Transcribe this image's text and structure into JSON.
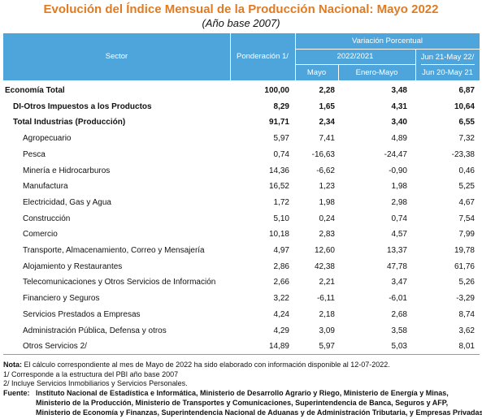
{
  "header": {
    "title": "Evolución del Índice Mensual de la Producción Nacional: Mayo 2022",
    "subtitle": "(Año base 2007)"
  },
  "table": {
    "columns": {
      "sector": "Sector",
      "weight": "Ponderación 1/",
      "variation": "Variación Porcentual",
      "period": "2022/2021",
      "month": "Mayo",
      "ytd": "Enero-Mayo",
      "annual_top": "Jun 21-May 22/",
      "annual_bottom": "Jun 20-May 21"
    },
    "rows": [
      [
        "Economía Total",
        "100,00",
        "2,28",
        "3,48",
        "6,87"
      ],
      [
        "DI-Otros Impuestos a los Productos",
        "8,29",
        "1,65",
        "4,31",
        "10,64"
      ],
      [
        "Total Industrias (Producción)",
        "91,71",
        "2,34",
        "3,40",
        "6,55"
      ],
      [
        "Agropecuario",
        "5,97",
        "7,41",
        "4,89",
        "7,32"
      ],
      [
        "Pesca",
        "0,74",
        "-16,63",
        "-24,47",
        "-23,38"
      ],
      [
        "Minería e Hidrocarburos",
        "14,36",
        "-6,62",
        "-0,90",
        "0,46"
      ],
      [
        "Manufactura",
        "16,52",
        "1,23",
        "1,98",
        "5,25"
      ],
      [
        "Electricidad, Gas y Agua",
        "1,72",
        "1,98",
        "2,98",
        "4,67"
      ],
      [
        "Construcción",
        "5,10",
        "0,24",
        "0,74",
        "7,54"
      ],
      [
        "Comercio",
        "10,18",
        "2,83",
        "4,57",
        "7,99"
      ],
      [
        "Transporte, Almacenamiento, Correo y Mensajería",
        "4,97",
        "12,60",
        "13,37",
        "19,78"
      ],
      [
        "Alojamiento y Restaurantes",
        "2,86",
        "42,38",
        "47,78",
        "61,76"
      ],
      [
        "Telecomunicaciones y Otros Servicios de Información",
        "2,66",
        "2,21",
        "3,47",
        "5,26"
      ],
      [
        "Financiero y Seguros",
        "3,22",
        "-6,11",
        "-6,01",
        "-3,29"
      ],
      [
        "Servicios Prestados a Empresas",
        "4,24",
        "2,18",
        "2,68",
        "8,74"
      ],
      [
        "Administración Pública, Defensa y otros",
        "4,29",
        "3,09",
        "3,58",
        "3,62"
      ],
      [
        "Otros Servicios 2/",
        "14,89",
        "5,97",
        "5,03",
        "8,01"
      ]
    ]
  },
  "notes": {
    "label": "Nota:",
    "text": "El cálculo correspondiente al mes de Mayo de 2022 ha sido elaborado con información disponible al 12-07-2022.",
    "note1": "1/ Corresponde a la estructura del PBI año base 2007",
    "note2": "2/ Incluye Servicios Inmobiliarios y Servicios Personales."
  },
  "source": {
    "label": "Fuente:",
    "lines": [
      "Instituto Nacional de Estadística e Informática, Ministerio de Desarrollo Agrario y Riego, Ministerio de Energía y Minas,",
      "Ministerio de la Producción, Ministerio de Transportes y Comunicaciones, Superintendencia de Banca, Seguros y AFP,",
      "Ministerio de Economía y Finanzas, Superintendencia Nacional de Aduanas y de Administración Tributaria, y Empresas Privadas."
    ]
  }
}
